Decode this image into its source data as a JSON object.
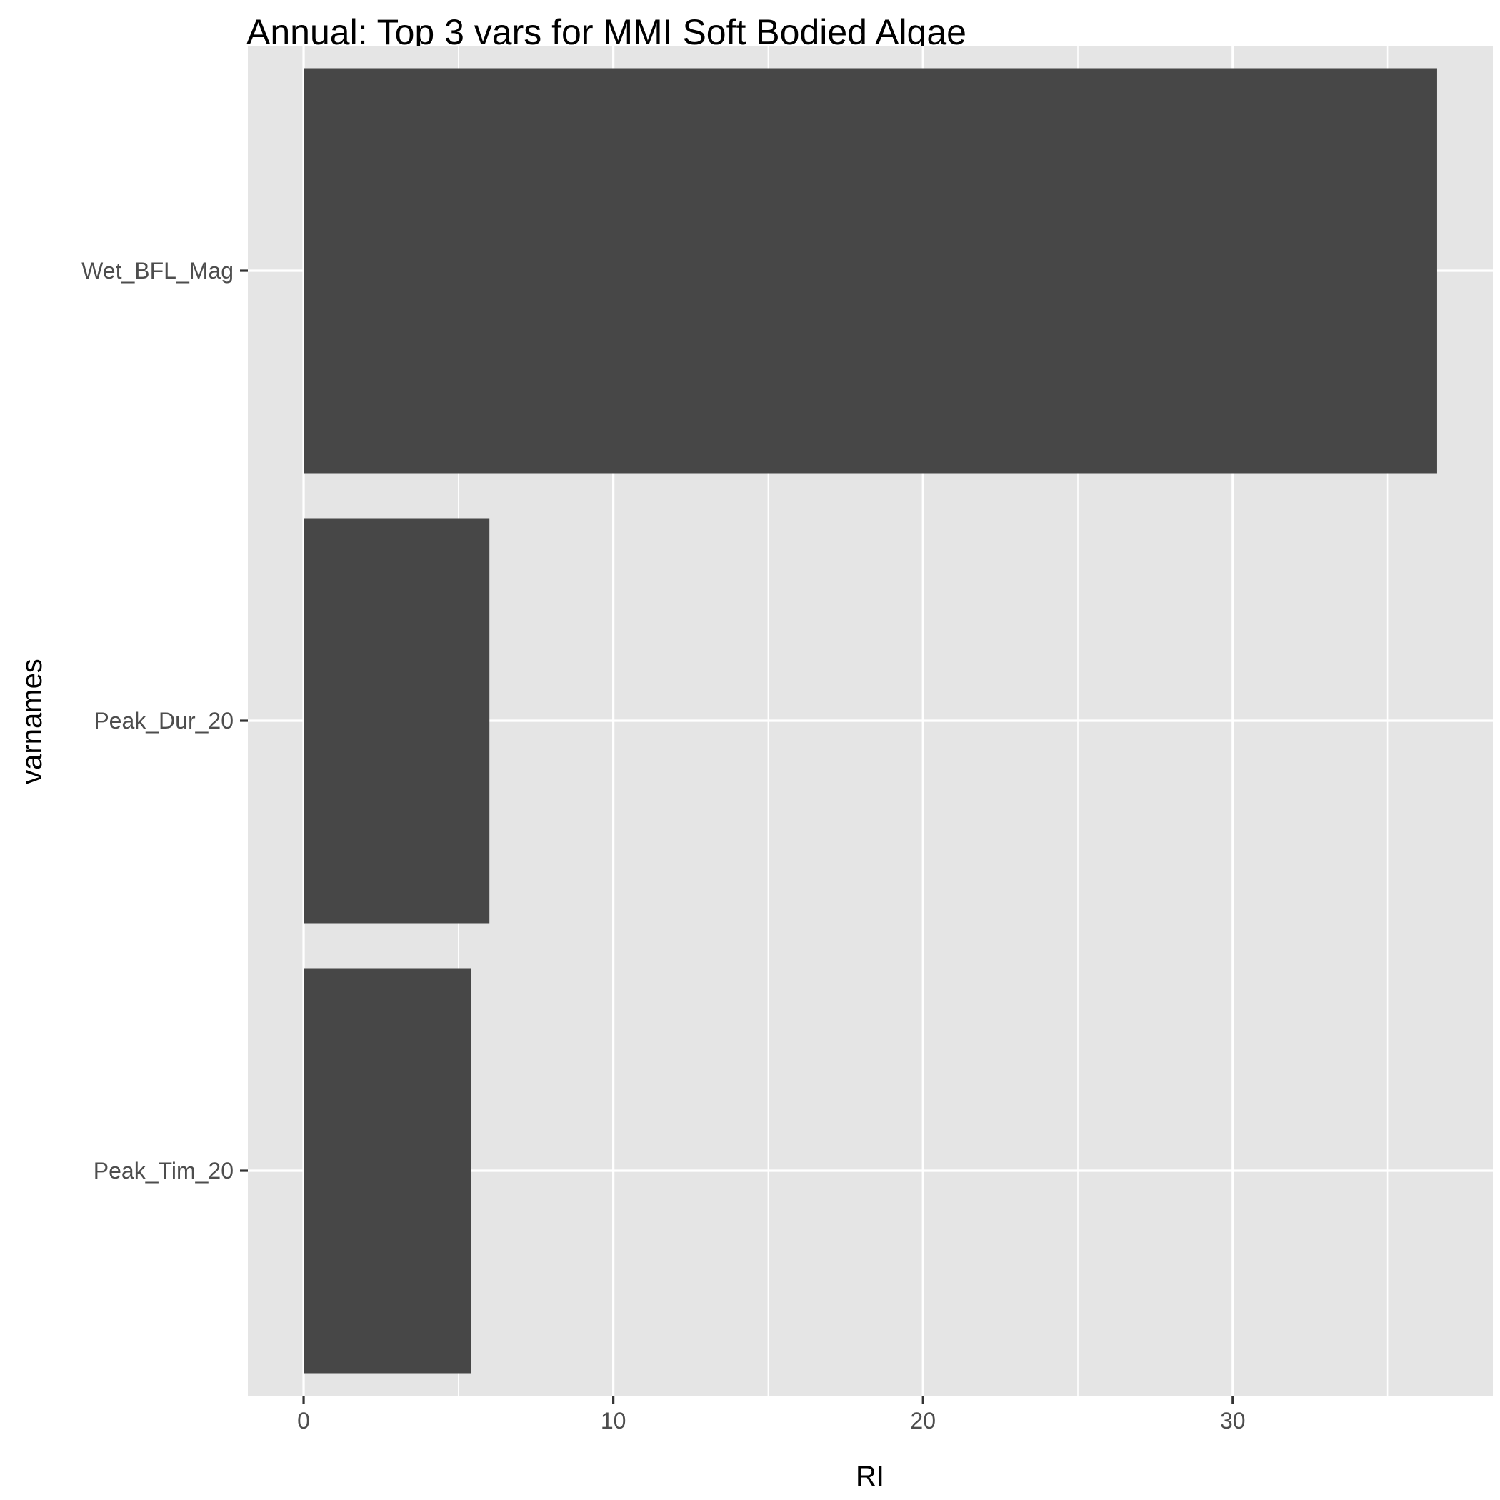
{
  "chart_data": {
    "type": "bar",
    "orientation": "horizontal",
    "title": "Annual: Top 3 vars for MMI Soft Bodied Algae",
    "xlabel": "RI",
    "ylabel": "varnames",
    "categories": [
      "Wet_BFL_Mag",
      "Peak_Dur_20",
      "Peak_Tim_20"
    ],
    "values": [
      36.6,
      6.0,
      5.4
    ],
    "xlim": [
      -1.8,
      38.4
    ],
    "x_ticks": [
      0,
      10,
      20,
      30
    ],
    "x_tick_labels": [
      "0",
      "10",
      "20",
      "30"
    ],
    "x_minor_ticks": [
      5,
      15,
      25,
      35
    ],
    "grid": true,
    "legend": "none",
    "colors": {
      "bar": "#474747",
      "panel": "#e5e5e5",
      "grid": "#ffffff",
      "tick_label": "#4d4d4d",
      "tick_mark": "#333333"
    }
  }
}
